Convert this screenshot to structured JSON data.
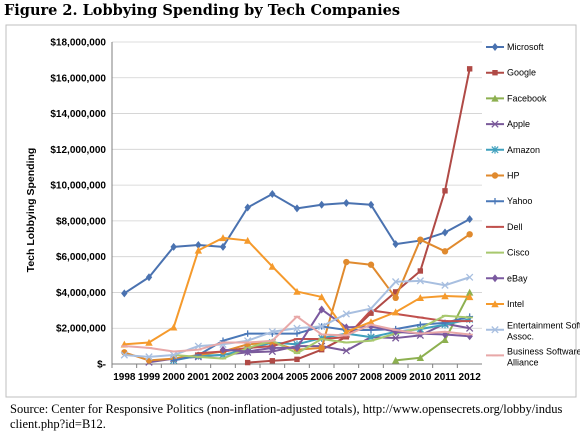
{
  "figure_title": "Figure 2. Lobbying Spending by Tech Companies",
  "source_text": "Source: Center for Responsive Politics (non-inflation-adjusted totals), http://www.opensecrets.org/lobby/indus client.php?id=B12.",
  "chart_data": {
    "type": "line",
    "title": "Figure 2. Lobbying Spending by Tech Companies",
    "xlabel": "",
    "ylabel": "Tech Lobbying Spending",
    "ylim": [
      0,
      18000000
    ],
    "grid": true,
    "legend_position": "right",
    "x": [
      "1998",
      "1999",
      "2000",
      "2001",
      "2002",
      "2003",
      "2004",
      "2005",
      "2006",
      "2007",
      "2008",
      "2009",
      "2010",
      "2011",
      "2012"
    ],
    "y_ticks": [
      {
        "value": 0,
        "label": "$-"
      },
      {
        "value": 2000000,
        "label": "$2,000,000"
      },
      {
        "value": 4000000,
        "label": "$4,000,000"
      },
      {
        "value": 6000000,
        "label": "$6,000,000"
      },
      {
        "value": 8000000,
        "label": "$8,000,000"
      },
      {
        "value": 10000000,
        "label": "$10,000,000"
      },
      {
        "value": 12000000,
        "label": "$12,000,000"
      },
      {
        "value": 14000000,
        "label": "$14,000,000"
      },
      {
        "value": 16000000,
        "label": "$16,000,000"
      },
      {
        "value": 18000000,
        "label": "$18,000,000"
      }
    ],
    "series": [
      {
        "name": "Microsoft",
        "color": "#4a72b0",
        "marker": "diamond",
        "values": [
          3950000,
          4850000,
          6550000,
          6650000,
          6550000,
          8750000,
          9500000,
          8700000,
          8900000,
          9000000,
          8900000,
          6700000,
          6900000,
          7350000,
          8100000
        ]
      },
      {
        "name": "Google",
        "color": "#b04a46",
        "marker": "square",
        "values": [
          null,
          null,
          null,
          null,
          null,
          80000,
          180000,
          260000,
          800000,
          1520000,
          2840000,
          4030000,
          5200000,
          9680000,
          16500000
        ]
      },
      {
        "name": "Facebook",
        "color": "#8db050",
        "marker": "triangle",
        "values": [
          null,
          null,
          null,
          null,
          null,
          null,
          null,
          null,
          null,
          null,
          null,
          200000,
          350000,
          1350000,
          4000000
        ]
      },
      {
        "name": "Apple",
        "color": "#7a5a9a",
        "marker": "x",
        "values": [
          null,
          100000,
          300000,
          400000,
          520000,
          650000,
          700000,
          1000000,
          1000000,
          740000,
          1500000,
          1450000,
          1600000,
          2250000,
          2000000
        ]
      },
      {
        "name": "Amazon",
        "color": "#3fa0bd",
        "marker": "star",
        "values": [
          null,
          null,
          200000,
          460000,
          500000,
          840000,
          1200000,
          1100000,
          1450000,
          1700000,
          1500000,
          1800000,
          1950000,
          2200000,
          2500000
        ]
      },
      {
        "name": "HP",
        "color": "#e08a2e",
        "marker": "circle",
        "values": [
          650000,
          200000,
          300000,
          500000,
          700000,
          1100000,
          1200000,
          800000,
          900000,
          5700000,
          5550000,
          3700000,
          6950000,
          6300000,
          7250000
        ]
      },
      {
        "name": "Yahoo",
        "color": "#4a78b8",
        "marker": "plus",
        "values": [
          null,
          null,
          200000,
          500000,
          1300000,
          1700000,
          1700000,
          1700000,
          2100000,
          1900000,
          1900000,
          1950000,
          2200000,
          2300000,
          2650000
        ]
      },
      {
        "name": "Dell",
        "color": "#c0504d",
        "marker": "dash",
        "values": [
          null,
          null,
          null,
          600000,
          700000,
          900000,
          1000000,
          1400000,
          1400000,
          1500000,
          3000000,
          2800000,
          2600000,
          2400000,
          2400000
        ]
      },
      {
        "name": "Cisco",
        "color": "#a8c86e",
        "marker": "dash",
        "values": [
          null,
          null,
          500000,
          400000,
          300000,
          900000,
          1300000,
          600000,
          1400000,
          1200000,
          1300000,
          1700000,
          2000000,
          2700000,
          2600000
        ]
      },
      {
        "name": "eBay",
        "color": "#7b5aa0",
        "marker": "diamond",
        "values": [
          null,
          null,
          null,
          null,
          800000,
          700000,
          900000,
          900000,
          3050000,
          2050000,
          2100000,
          1800000,
          1700000,
          1650000,
          1550000
        ]
      },
      {
        "name": "Intel",
        "color": "#f59a2c",
        "marker": "triangle",
        "values": [
          1100000,
          1200000,
          2050000,
          6350000,
          7050000,
          6900000,
          5450000,
          4050000,
          3750000,
          1800000,
          2350000,
          2900000,
          3700000,
          3800000,
          3750000
        ]
      },
      {
        "name": "Entertainment Software Assoc.",
        "color": "#a8bfe0",
        "marker": "x",
        "values": [
          500000,
          400000,
          500000,
          1000000,
          1100000,
          1300000,
          1800000,
          2000000,
          2100000,
          2800000,
          3100000,
          4600000,
          4650000,
          4400000,
          4850000
        ]
      },
      {
        "name": "Business Software Alliance",
        "color": "#e8a8a8",
        "marker": "dash",
        "values": [
          1000000,
          900000,
          700000,
          800000,
          1200000,
          1200000,
          1300000,
          2650000,
          1650000,
          1600000,
          2200000,
          1900000,
          1700000,
          1800000,
          1650000
        ]
      }
    ]
  }
}
